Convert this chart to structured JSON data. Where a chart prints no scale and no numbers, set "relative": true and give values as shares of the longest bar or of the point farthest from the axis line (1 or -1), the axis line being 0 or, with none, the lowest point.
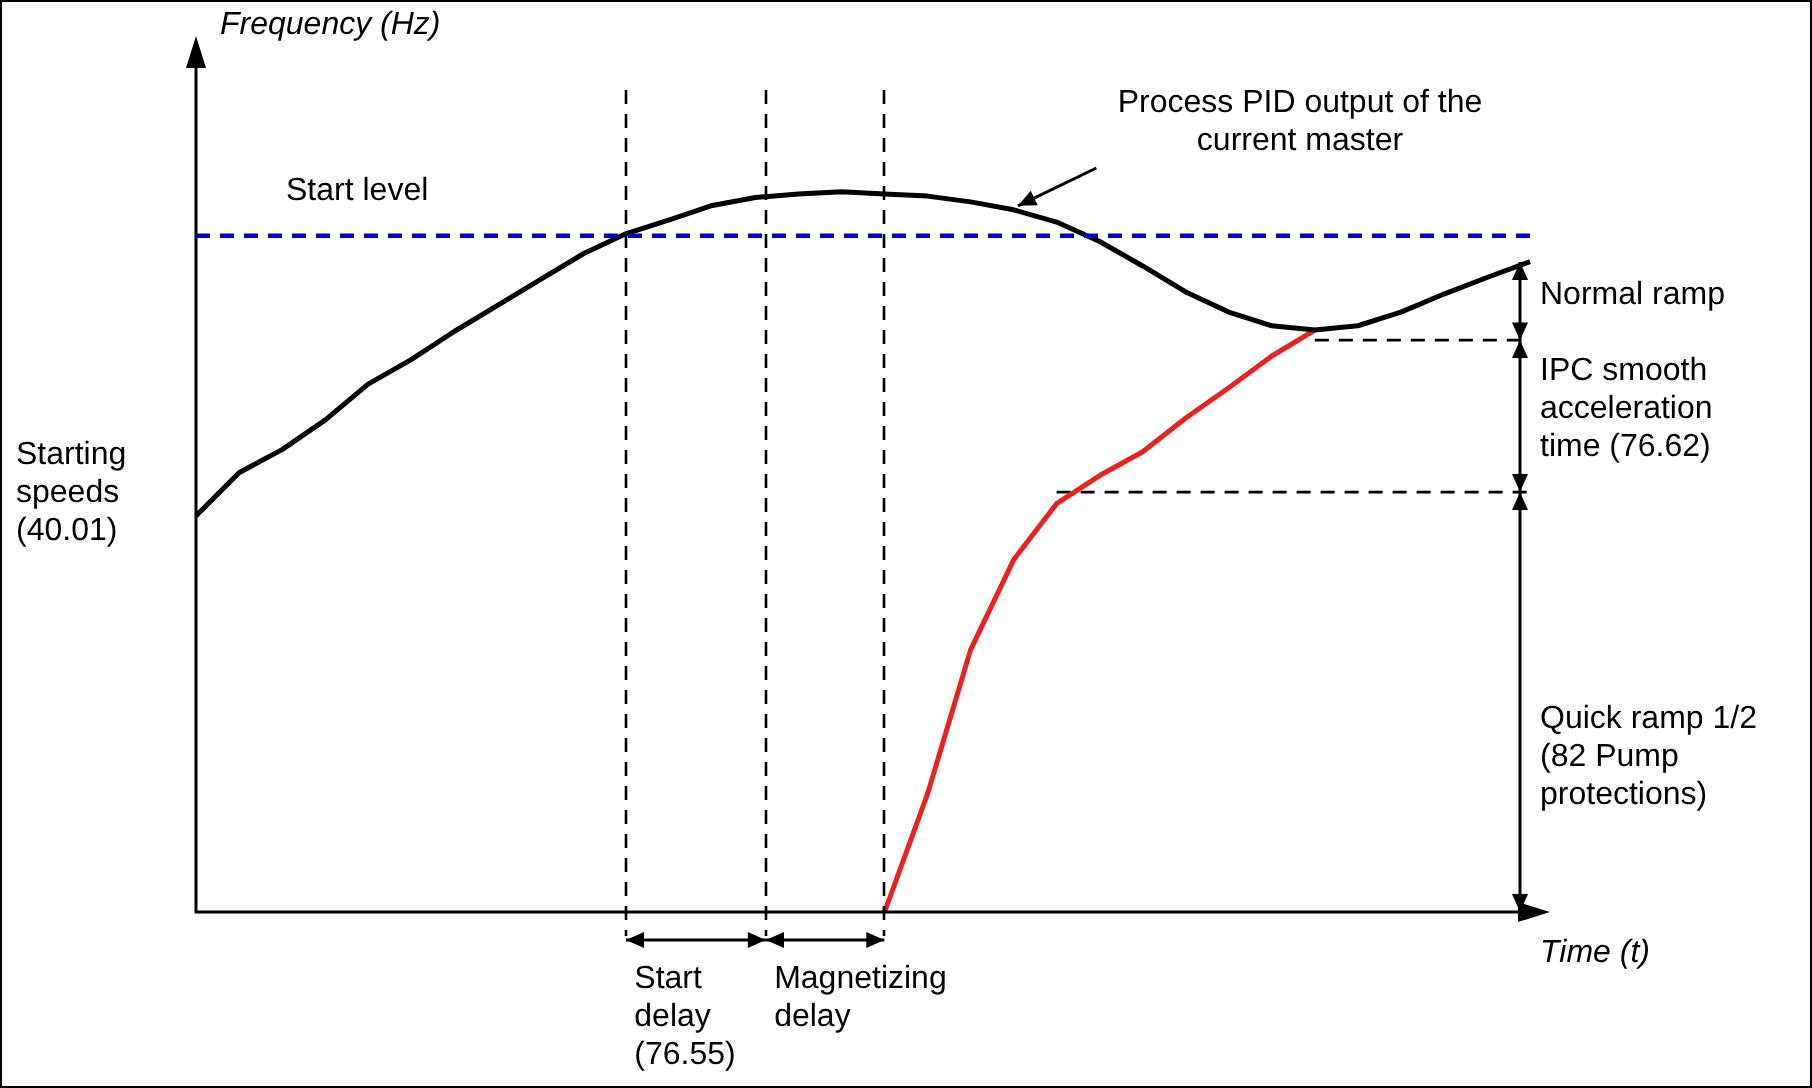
{
  "chart_data": {
    "type": "line",
    "relative": true,
    "tick_labels": false,
    "legend": false,
    "marker": "none",
    "line_style": "solid",
    "ylabel": "Frequency (Hz)",
    "xlabel": "Time (t)",
    "categories": [
      null,
      null,
      null,
      null,
      null,
      null,
      null,
      null,
      null,
      null,
      null,
      null,
      null,
      null,
      null,
      null,
      null,
      null,
      null,
      null,
      null,
      null,
      null,
      null,
      null,
      null,
      null,
      null,
      null,
      null,
      null,
      null
    ],
    "series": [
      {
        "color": "#000000",
        "values": [
          0.55,
          0.61,
          0.642,
          0.683,
          0.733,
          0.767,
          0.806,
          0.842,
          0.878,
          0.914,
          0.942,
          0.961,
          0.981,
          0.992,
          0.997,
          1,
          0.997,
          0.994,
          0.986,
          0.975,
          0.958,
          0.931,
          0.897,
          0.861,
          0.833,
          0.814,
          0.808,
          0.814,
          0.833,
          0.858,
          0.881,
          0.903
        ]
      },
      {
        "color": "#e8231f",
        "values": [
          null,
          null,
          null,
          null,
          null,
          null,
          null,
          null,
          null,
          null,
          null,
          null,
          null,
          null,
          null,
          null,
          0,
          0.164,
          0.364,
          0.489,
          0.567,
          0.606,
          0.639,
          0.686,
          0.728,
          0.772,
          0.808,
          null,
          null,
          null,
          null,
          null
        ]
      },
      {
        "color": "#000000",
        "line_style": "dashed",
        "values": [
          null,
          null,
          null,
          null,
          null,
          null,
          null,
          null,
          null,
          null,
          null,
          null,
          null,
          null,
          null,
          null,
          null,
          null,
          null,
          null,
          null,
          null,
          null,
          null,
          null,
          null,
          0.794,
          0.794,
          0.794,
          0.794,
          0.794,
          0.794
        ]
      },
      {
        "color": "#000000",
        "line_style": "dashed",
        "values": [
          null,
          null,
          null,
          null,
          null,
          null,
          null,
          null,
          null,
          null,
          null,
          null,
          null,
          null,
          null,
          null,
          null,
          null,
          null,
          null,
          0.583,
          0.583,
          0.583,
          0.583,
          0.583,
          0.583,
          0.583,
          0.583,
          0.583,
          0.583,
          0.583,
          0.583
        ]
      }
    ],
    "ref_lines": [
      {
        "axis": "y",
        "value": 0.939,
        "label": "Start level",
        "color": "#0000cc",
        "line_style": "dashed"
      }
    ],
    "annotations": [
      "Process PID output of the current master",
      "Starting speeds (40.01)",
      "Normal ramp",
      "IPC smooth acceleration time (76.62)",
      "Quick ramp 1/2 (82 Pump protections)",
      "Start delay (76.55)",
      "Magnetizing delay"
    ]
  }
}
